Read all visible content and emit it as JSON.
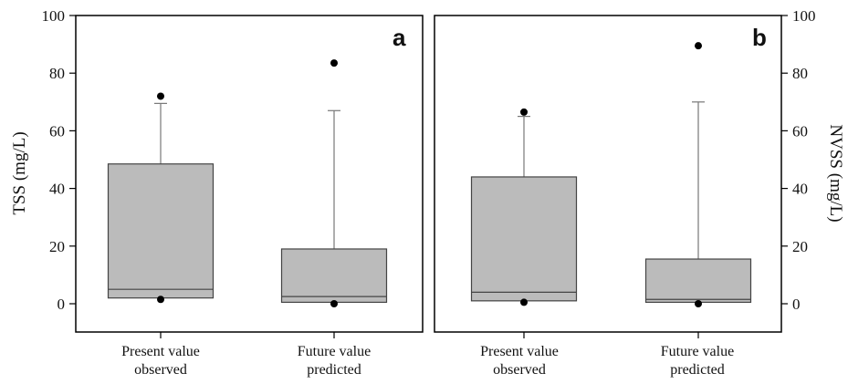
{
  "chart_data": [
    {
      "type": "box",
      "panel_label": "a",
      "ylabel": "TSS (mg/L)",
      "y_axis_side": "left",
      "ylim": [
        -9,
        100
      ],
      "yticks": [
        0,
        20,
        40,
        60,
        80,
        100
      ],
      "categories": [
        {
          "line1": "Present value",
          "line2": "observed"
        },
        {
          "line1": "Future value",
          "line2": "predicted"
        }
      ],
      "boxes": [
        {
          "q1": 2,
          "median": 5,
          "q3": 48.5,
          "whisker_low": 1.5,
          "whisker_high": 69.5,
          "outliers": [
            72,
            1.5
          ]
        },
        {
          "q1": 0.5,
          "median": 2.5,
          "q3": 19,
          "whisker_low": 0,
          "whisker_high": 67,
          "outliers": [
            83.5,
            0
          ]
        }
      ],
      "grid": false,
      "legend": "none"
    },
    {
      "type": "box",
      "panel_label": "b",
      "ylabel": "NVSS (mg/L)",
      "y_axis_side": "right",
      "ylim": [
        -9,
        100
      ],
      "yticks": [
        0,
        20,
        40,
        60,
        80,
        100
      ],
      "categories": [
        {
          "line1": "Present value",
          "line2": "observed"
        },
        {
          "line1": "Future value",
          "line2": "predicted"
        }
      ],
      "boxes": [
        {
          "q1": 1,
          "median": 4,
          "q3": 44,
          "whisker_low": 0.5,
          "whisker_high": 65,
          "outliers": [
            66.5,
            0.5
          ]
        },
        {
          "q1": 0.5,
          "median": 1.5,
          "q3": 15.5,
          "whisker_low": 0,
          "whisker_high": 70,
          "outliers": [
            89.5,
            0
          ]
        }
      ],
      "grid": false,
      "legend": "none"
    }
  ],
  "style": {
    "box_fill": "#bbbbbb",
    "box_stroke": "#444444",
    "whisker_color": "#777777",
    "outlier_color": "#000000",
    "axis_color": "#000000"
  }
}
